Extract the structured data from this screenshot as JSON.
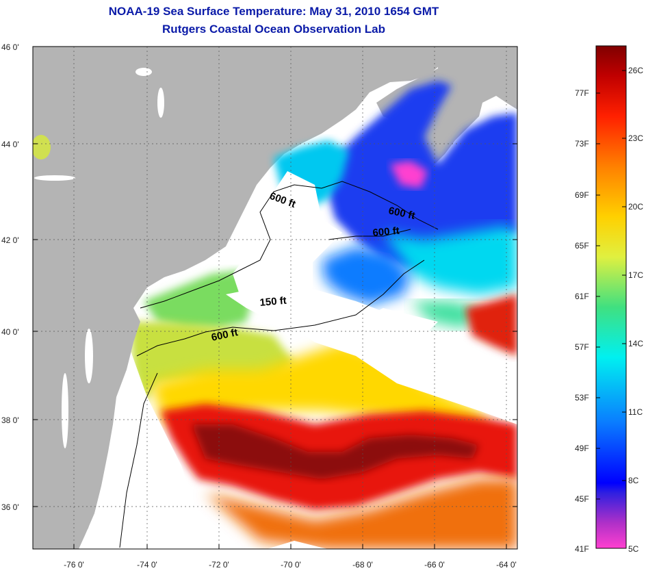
{
  "title_line1": "NOAA-19 Sea Surface Temperature:  May 31, 2010 1654 GMT",
  "title_line2": "Rutgers Coastal Ocean Observation Lab",
  "latitude_labels": [
    "46 0'",
    "44 0'",
    "42 0'",
    "40 0'",
    "38 0'",
    "36 0'"
  ],
  "longitude_labels": [
    "-76 0'",
    "-74 0'",
    "-72 0'",
    "-70 0'",
    "-68 0'",
    "-66 0'",
    "-64 0'"
  ],
  "depth_contour_labels": [
    "600 ft",
    "600 ft",
    "600 ft",
    "150 ft",
    "600 ft"
  ],
  "colorbar": {
    "fahrenheit_labels": [
      "77F",
      "73F",
      "69F",
      "65F",
      "61F",
      "57F",
      "53F",
      "49F",
      "45F",
      "41F"
    ],
    "celsius_labels": [
      "26C",
      "23C",
      "20C",
      "17C",
      "14C",
      "11C",
      "8C",
      "5C"
    ],
    "stops": [
      "#ff40d0",
      "#8a30c0",
      "#0000ff",
      "#0a8cff",
      "#00f0f0",
      "#40e080",
      "#e0f040",
      "#ffd000",
      "#ff8000",
      "#ff2000",
      "#c00000",
      "#800000"
    ]
  },
  "colors": {
    "land": "#b4b4b4",
    "title": "#0a1aa8"
  }
}
